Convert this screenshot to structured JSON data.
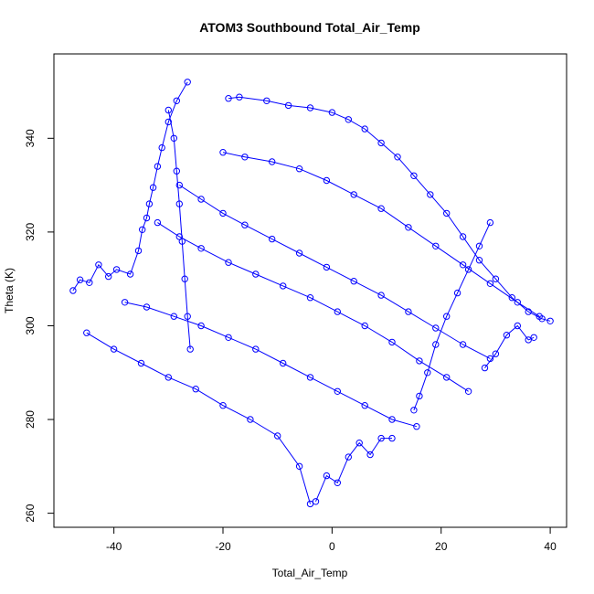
{
  "chart_data": {
    "type": "scatter",
    "title": "ATOM3 Southbound Total_Air_Temp",
    "xlabel": "Total_Air_Temp",
    "ylabel": "Theta (K)",
    "xlim": [
      -51,
      43
    ],
    "ylim": [
      257,
      358
    ],
    "xticks": [
      -40,
      -20,
      0,
      20,
      40
    ],
    "yticks": [
      260,
      280,
      300,
      320,
      340
    ],
    "grid": false,
    "legend": "none",
    "marker": "open-circle",
    "connect_points": true,
    "color": "#0000ff",
    "series": [
      {
        "values": [
          {
            "x": -47.5,
            "y": 307.5
          },
          {
            "x": -46.2,
            "y": 309.8
          },
          {
            "x": -44.5,
            "y": 309.2
          },
          {
            "x": -42.8,
            "y": 313.0
          },
          {
            "x": -41.0,
            "y": 310.5
          },
          {
            "x": -39.5,
            "y": 312.0
          },
          {
            "x": -37.0,
            "y": 311.0
          },
          {
            "x": -35.5,
            "y": 316.0
          },
          {
            "x": -34.8,
            "y": 320.5
          },
          {
            "x": -34.0,
            "y": 323.0
          },
          {
            "x": -33.5,
            "y": 326.0
          },
          {
            "x": -32.8,
            "y": 329.5
          },
          {
            "x": -32.0,
            "y": 334.0
          },
          {
            "x": -31.2,
            "y": 338.0
          },
          {
            "x": -30.0,
            "y": 343.5
          },
          {
            "x": -28.5,
            "y": 348.0
          },
          {
            "x": -26.5,
            "y": 352.0
          }
        ]
      },
      {
        "values": [
          {
            "x": -19.0,
            "y": 348.5
          },
          {
            "x": -17.0,
            "y": 348.8
          },
          {
            "x": -12.0,
            "y": 348.0
          },
          {
            "x": -8.0,
            "y": 347.0
          },
          {
            "x": -4.0,
            "y": 346.5
          },
          {
            "x": 0.0,
            "y": 345.5
          },
          {
            "x": 3.0,
            "y": 344.0
          },
          {
            "x": 6.0,
            "y": 342.0
          },
          {
            "x": 9.0,
            "y": 339.0
          },
          {
            "x": 12.0,
            "y": 336.0
          },
          {
            "x": 15.0,
            "y": 332.0
          },
          {
            "x": 18.0,
            "y": 328.0
          },
          {
            "x": 21.0,
            "y": 324.0
          },
          {
            "x": 24.0,
            "y": 319.0
          },
          {
            "x": 27.0,
            "y": 314.0
          },
          {
            "x": 30.0,
            "y": 310.0
          },
          {
            "x": 33.0,
            "y": 306.0
          },
          {
            "x": 36.0,
            "y": 303.0
          },
          {
            "x": 38.5,
            "y": 301.5
          },
          {
            "x": 40.0,
            "y": 301.0
          }
        ]
      },
      {
        "values": [
          {
            "x": -20.0,
            "y": 337.0
          },
          {
            "x": -16.0,
            "y": 336.0
          },
          {
            "x": -11.0,
            "y": 335.0
          },
          {
            "x": -6.0,
            "y": 333.5
          },
          {
            "x": -1.0,
            "y": 331.0
          },
          {
            "x": 4.0,
            "y": 328.0
          },
          {
            "x": 9.0,
            "y": 325.0
          },
          {
            "x": 14.0,
            "y": 321.0
          },
          {
            "x": 19.0,
            "y": 317.0
          },
          {
            "x": 24.0,
            "y": 313.0
          },
          {
            "x": 29.0,
            "y": 309.0
          },
          {
            "x": 34.0,
            "y": 305.0
          },
          {
            "x": 38.0,
            "y": 302.0
          }
        ]
      },
      {
        "values": [
          {
            "x": -28.0,
            "y": 330.0
          },
          {
            "x": -24.0,
            "y": 327.0
          },
          {
            "x": -20.0,
            "y": 324.0
          },
          {
            "x": -16.0,
            "y": 321.5
          },
          {
            "x": -11.0,
            "y": 318.5
          },
          {
            "x": -6.0,
            "y": 315.5
          },
          {
            "x": -1.0,
            "y": 312.5
          },
          {
            "x": 4.0,
            "y": 309.5
          },
          {
            "x": 9.0,
            "y": 306.5
          },
          {
            "x": 14.0,
            "y": 303.0
          },
          {
            "x": 19.0,
            "y": 299.5
          },
          {
            "x": 24.0,
            "y": 296.0
          },
          {
            "x": 29.0,
            "y": 293.0
          }
        ]
      },
      {
        "values": [
          {
            "x": -32.0,
            "y": 322.0
          },
          {
            "x": -28.0,
            "y": 319.0
          },
          {
            "x": -24.0,
            "y": 316.5
          },
          {
            "x": -19.0,
            "y": 313.5
          },
          {
            "x": -14.0,
            "y": 311.0
          },
          {
            "x": -9.0,
            "y": 308.5
          },
          {
            "x": -4.0,
            "y": 306.0
          },
          {
            "x": 1.0,
            "y": 303.0
          },
          {
            "x": 6.0,
            "y": 300.0
          },
          {
            "x": 11.0,
            "y": 296.5
          },
          {
            "x": 16.0,
            "y": 292.5
          },
          {
            "x": 21.0,
            "y": 289.0
          },
          {
            "x": 25.0,
            "y": 286.0
          }
        ]
      },
      {
        "values": [
          {
            "x": -38.0,
            "y": 305.0
          },
          {
            "x": -34.0,
            "y": 304.0
          },
          {
            "x": -29.0,
            "y": 302.0
          },
          {
            "x": -24.0,
            "y": 300.0
          },
          {
            "x": -19.0,
            "y": 297.5
          },
          {
            "x": -14.0,
            "y": 295.0
          },
          {
            "x": -9.0,
            "y": 292.0
          },
          {
            "x": -4.0,
            "y": 289.0
          },
          {
            "x": 1.0,
            "y": 286.0
          },
          {
            "x": 6.0,
            "y": 283.0
          },
          {
            "x": 11.0,
            "y": 280.0
          },
          {
            "x": 15.5,
            "y": 278.5
          }
        ]
      },
      {
        "values": [
          {
            "x": -45.0,
            "y": 298.5
          },
          {
            "x": -40.0,
            "y": 295.0
          },
          {
            "x": -35.0,
            "y": 292.0
          },
          {
            "x": -30.0,
            "y": 289.0
          },
          {
            "x": -25.0,
            "y": 286.5
          },
          {
            "x": -20.0,
            "y": 283.0
          },
          {
            "x": -15.0,
            "y": 280.0
          },
          {
            "x": -10.0,
            "y": 276.5
          },
          {
            "x": -6.0,
            "y": 270.0
          },
          {
            "x": -4.0,
            "y": 262.0
          }
        ]
      },
      {
        "values": [
          {
            "x": -3.0,
            "y": 262.5
          },
          {
            "x": -1.0,
            "y": 268.0
          },
          {
            "x": 1.0,
            "y": 266.5
          },
          {
            "x": 3.0,
            "y": 272.0
          },
          {
            "x": 5.0,
            "y": 275.0
          },
          {
            "x": 7.0,
            "y": 272.5
          },
          {
            "x": 9.0,
            "y": 276.0
          },
          {
            "x": 11.0,
            "y": 276.0
          }
        ]
      },
      {
        "values": [
          {
            "x": 15.0,
            "y": 282.0
          },
          {
            "x": 16.0,
            "y": 285.0
          },
          {
            "x": 17.5,
            "y": 290.0
          },
          {
            "x": 19.0,
            "y": 296.0
          },
          {
            "x": 21.0,
            "y": 302.0
          },
          {
            "x": 23.0,
            "y": 307.0
          },
          {
            "x": 25.0,
            "y": 312.0
          },
          {
            "x": 27.0,
            "y": 317.0
          },
          {
            "x": 29.0,
            "y": 322.0
          }
        ]
      },
      {
        "values": [
          {
            "x": -30.0,
            "y": 346.0
          },
          {
            "x": -29.0,
            "y": 340.0
          },
          {
            "x": -28.5,
            "y": 333.0
          },
          {
            "x": -28.0,
            "y": 326.0
          },
          {
            "x": -27.5,
            "y": 318.0
          },
          {
            "x": -27.0,
            "y": 310.0
          },
          {
            "x": -26.5,
            "y": 302.0
          },
          {
            "x": -26.0,
            "y": 295.0
          }
        ]
      },
      {
        "values": [
          {
            "x": 28.0,
            "y": 291.0
          },
          {
            "x": 30.0,
            "y": 294.0
          },
          {
            "x": 32.0,
            "y": 298.0
          },
          {
            "x": 34.0,
            "y": 300.0
          },
          {
            "x": 36.0,
            "y": 297.0
          },
          {
            "x": 37.0,
            "y": 297.5
          }
        ]
      }
    ]
  }
}
